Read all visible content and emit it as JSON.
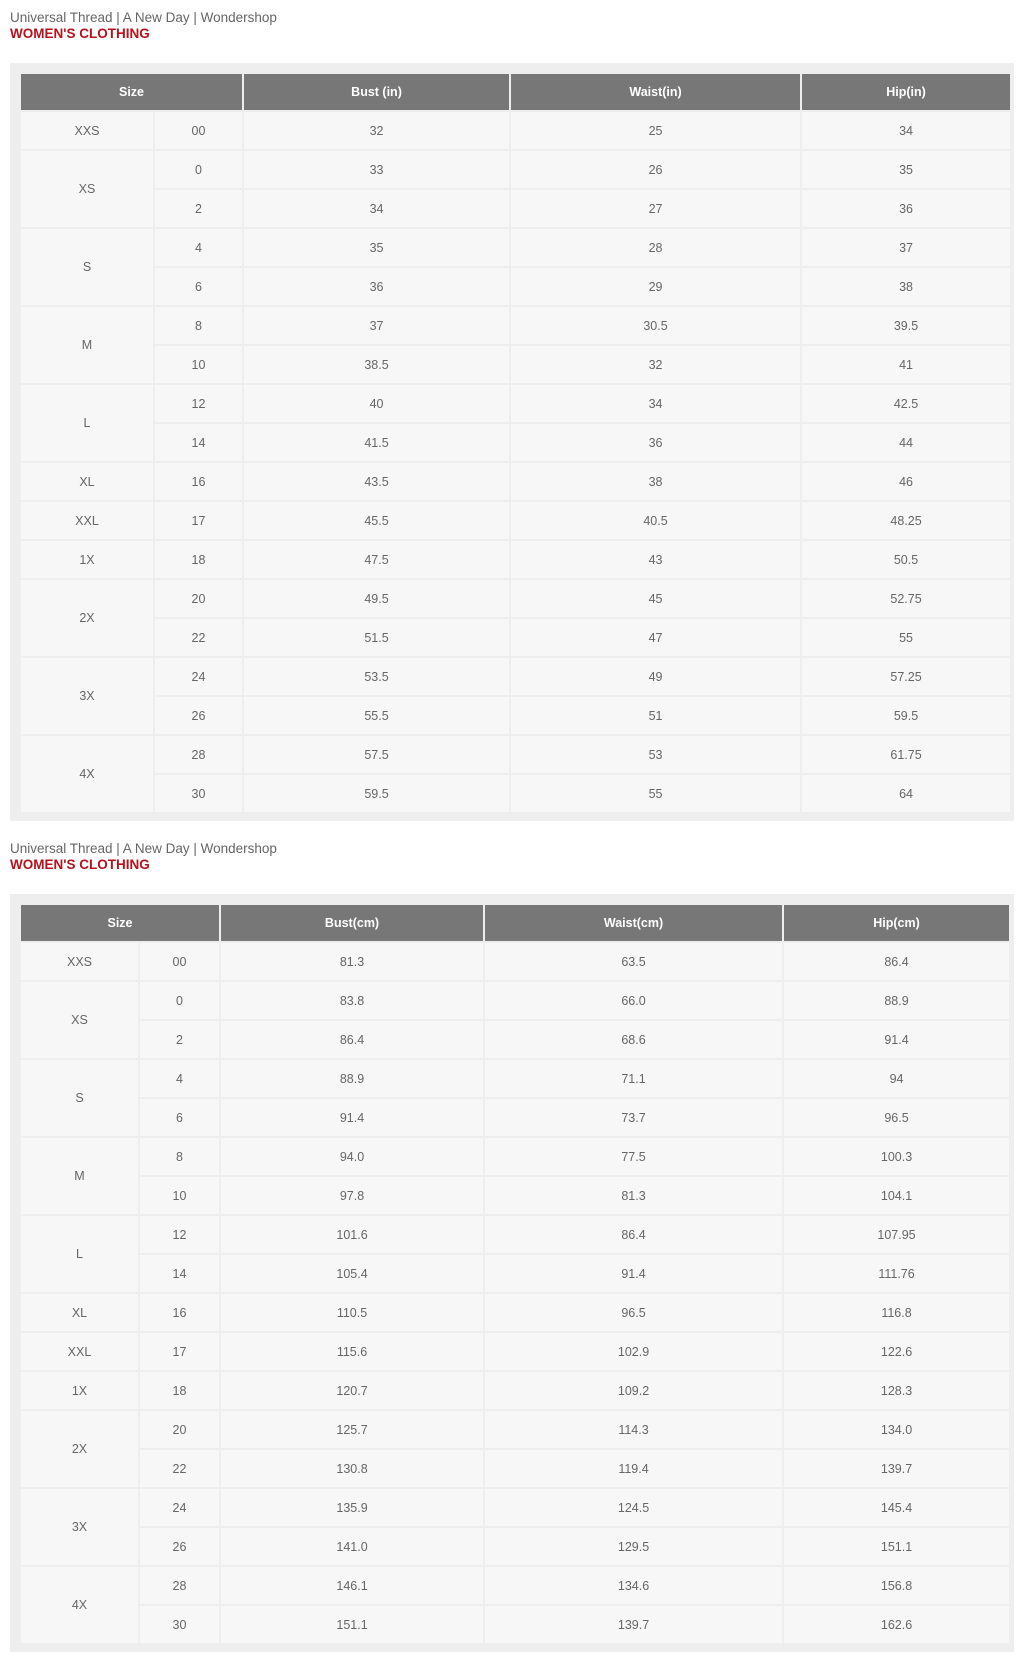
{
  "colors": {
    "heading": "#b5121b",
    "header_bg": "#777777",
    "cell_bg": "#f7f7f7",
    "panel_bg": "#eeeeee"
  },
  "tables": [
    {
      "brands": "Universal Thread | A New Day | Wondershop",
      "heading": "WOMEN'S CLOTHING",
      "headers": [
        "Size",
        "Bust (in)",
        "Waist(in)",
        "Hip(in)"
      ],
      "groups": [
        {
          "size": "XXS",
          "rows": [
            [
              "00",
              "32",
              "25",
              "34"
            ]
          ]
        },
        {
          "size": "XS",
          "rows": [
            [
              "0",
              "33",
              "26",
              "35"
            ],
            [
              "2",
              "34",
              "27",
              "36"
            ]
          ]
        },
        {
          "size": "S",
          "rows": [
            [
              "4",
              "35",
              "28",
              "37"
            ],
            [
              "6",
              "36",
              "29",
              "38"
            ]
          ]
        },
        {
          "size": "M",
          "rows": [
            [
              "8",
              "37",
              "30.5",
              "39.5"
            ],
            [
              "10",
              "38.5",
              "32",
              "41"
            ]
          ]
        },
        {
          "size": "L",
          "rows": [
            [
              "12",
              "40",
              "34",
              "42.5"
            ],
            [
              "14",
              "41.5",
              "36",
              "44"
            ]
          ]
        },
        {
          "size": "XL",
          "rows": [
            [
              "16",
              "43.5",
              "38",
              "46"
            ]
          ]
        },
        {
          "size": "XXL",
          "rows": [
            [
              "17",
              "45.5",
              "40.5",
              "48.25"
            ]
          ]
        },
        {
          "size": "1X",
          "rows": [
            [
              "18",
              "47.5",
              "43",
              "50.5"
            ]
          ]
        },
        {
          "size": "2X",
          "rows": [
            [
              "20",
              "49.5",
              "45",
              "52.75"
            ],
            [
              "22",
              "51.5",
              "47",
              "55"
            ]
          ]
        },
        {
          "size": "3X",
          "rows": [
            [
              "24",
              "53.5",
              "49",
              "57.25"
            ],
            [
              "26",
              "55.5",
              "51",
              "59.5"
            ]
          ]
        },
        {
          "size": "4X",
          "rows": [
            [
              "28",
              "57.5",
              "53",
              "61.75"
            ],
            [
              "30",
              "59.5",
              "55",
              "64"
            ]
          ]
        }
      ]
    },
    {
      "brands": "Universal Thread | A New Day | Wondershop",
      "heading": "WOMEN'S CLOTHING",
      "headers": [
        "Size",
        "Bust(cm)",
        "Waist(cm)",
        "Hip(cm)"
      ],
      "groups": [
        {
          "size": "XXS",
          "rows": [
            [
              "00",
              "81.3",
              "63.5",
              "86.4"
            ]
          ]
        },
        {
          "size": "XS",
          "rows": [
            [
              "0",
              "83.8",
              "66.0",
              "88.9"
            ],
            [
              "2",
              "86.4",
              "68.6",
              "91.4"
            ]
          ]
        },
        {
          "size": "S",
          "rows": [
            [
              "4",
              "88.9",
              "71.1",
              "94"
            ],
            [
              "6",
              "91.4",
              "73.7",
              "96.5"
            ]
          ]
        },
        {
          "size": "M",
          "rows": [
            [
              "8",
              "94.0",
              "77.5",
              "100.3"
            ],
            [
              "10",
              "97.8",
              "81.3",
              "104.1"
            ]
          ]
        },
        {
          "size": "L",
          "rows": [
            [
              "12",
              "101.6",
              "86.4",
              "107.95"
            ],
            [
              "14",
              "105.4",
              "91.4",
              "111.76"
            ]
          ]
        },
        {
          "size": "XL",
          "rows": [
            [
              "16",
              "110.5",
              "96.5",
              "116.8"
            ]
          ]
        },
        {
          "size": "XXL",
          "rows": [
            [
              "17",
              "115.6",
              "102.9",
              "122.6"
            ]
          ]
        },
        {
          "size": "1X",
          "rows": [
            [
              "18",
              "120.7",
              "109.2",
              "128.3"
            ]
          ]
        },
        {
          "size": "2X",
          "rows": [
            [
              "20",
              "125.7",
              "114.3",
              "134.0"
            ],
            [
              "22",
              "130.8",
              "119.4",
              "139.7"
            ]
          ]
        },
        {
          "size": "3X",
          "rows": [
            [
              "24",
              "135.9",
              "124.5",
              "145.4"
            ],
            [
              "26",
              "141.0",
              "129.5",
              "151.1"
            ]
          ]
        },
        {
          "size": "4X",
          "rows": [
            [
              "28",
              "146.1",
              "134.6",
              "156.8"
            ],
            [
              "30",
              "151.1",
              "139.7",
              "162.6"
            ]
          ]
        }
      ]
    }
  ]
}
